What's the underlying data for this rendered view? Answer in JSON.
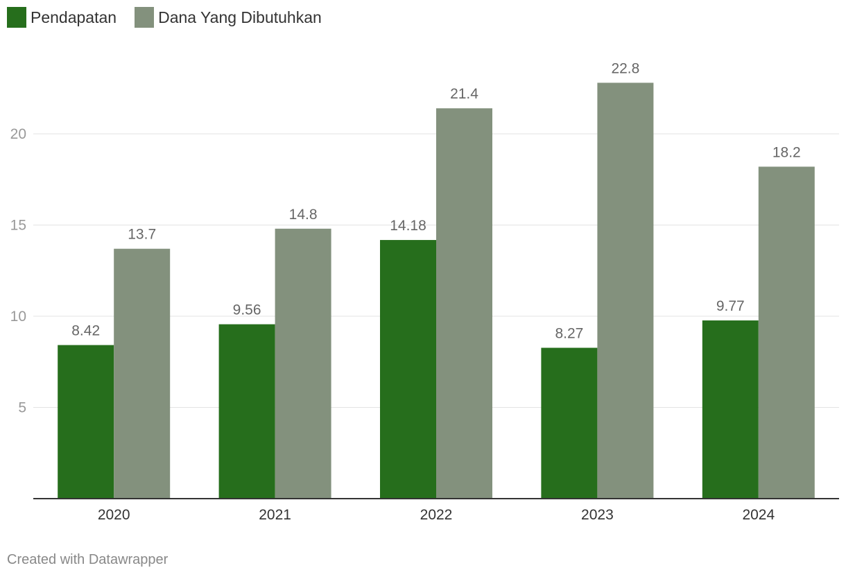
{
  "chart_data": {
    "type": "bar",
    "categories": [
      "2020",
      "2021",
      "2022",
      "2023",
      "2024"
    ],
    "series": [
      {
        "name": "Pendapatan",
        "values": [
          8.42,
          9.56,
          14.18,
          8.27,
          9.77
        ],
        "labels": [
          "8.42",
          "9.56",
          "14.18",
          "8.27",
          "9.77"
        ],
        "color": "#266e1c"
      },
      {
        "name": "Dana Yang Dibutuhkan",
        "values": [
          13.7,
          14.8,
          21.4,
          22.8,
          18.2
        ],
        "labels": [
          "13.7",
          "14.8",
          "21.4",
          "22.8",
          "18.2"
        ],
        "color": "#83917d"
      }
    ],
    "y_ticks": [
      5,
      10,
      15,
      20
    ],
    "ylim": [
      0,
      25
    ],
    "grid": true,
    "legend": "top-left"
  },
  "footer": {
    "credit": "Created with Datawrapper"
  }
}
